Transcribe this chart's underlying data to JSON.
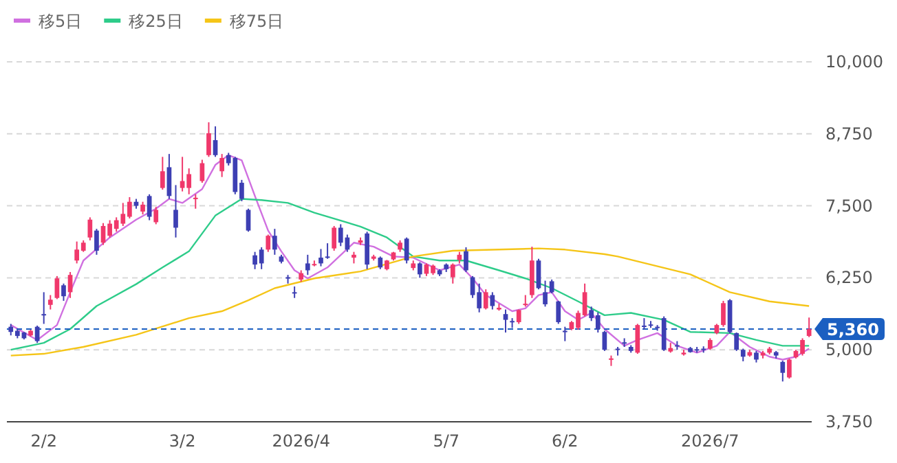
{
  "chart_data": {
    "type": "candlestick",
    "categories": [
      null,
      null,
      null,
      null,
      null,
      "2/2",
      null,
      null,
      null,
      null,
      null,
      null,
      null,
      null,
      null,
      null,
      null,
      null,
      null,
      null,
      null,
      null,
      null,
      null,
      null,
      null,
      "3/2",
      null,
      null,
      null,
      null,
      null,
      null,
      null,
      null,
      null,
      null,
      null,
      null,
      null,
      null,
      null,
      null,
      null,
      "2026/4",
      null,
      null,
      null,
      null,
      null,
      null,
      null,
      null,
      null,
      null,
      null,
      null,
      null,
      null,
      null,
      null,
      null,
      null,
      null,
      null,
      null,
      "5/7",
      null,
      null,
      null,
      null,
      null,
      null,
      null,
      null,
      null,
      null,
      null,
      null,
      null,
      null,
      null,
      null,
      null,
      "6/2",
      null,
      null,
      null,
      null,
      null,
      null,
      null,
      null,
      null,
      null,
      null,
      null,
      null,
      null,
      null,
      null,
      null,
      null,
      null,
      null,
      null,
      "2026/7",
      null,
      null,
      null,
      null,
      null,
      null,
      null,
      null,
      null,
      null,
      null,
      null,
      null,
      null,
      null
    ],
    "ohlc": [
      [
        5400,
        5450,
        5250,
        5310
      ],
      [
        5330,
        5350,
        5200,
        5240
      ],
      [
        5300,
        5310,
        5180,
        5200
      ],
      [
        5250,
        5350,
        5230,
        5330
      ],
      [
        5400,
        5420,
        5120,
        5150
      ],
      [
        5620,
        6000,
        5450,
        5600
      ],
      [
        5780,
        5950,
        5700,
        5870
      ],
      [
        5900,
        6280,
        5880,
        6240
      ],
      [
        6120,
        6150,
        5850,
        5930
      ],
      [
        6000,
        6350,
        5900,
        6300
      ],
      [
        6550,
        6880,
        6500,
        6740
      ],
      [
        6720,
        6900,
        6700,
        6860
      ],
      [
        6950,
        7300,
        6900,
        7260
      ],
      [
        7070,
        7100,
        6650,
        6720
      ],
      [
        6860,
        7200,
        6820,
        7150
      ],
      [
        6980,
        7250,
        6950,
        7190
      ],
      [
        7100,
        7300,
        7050,
        7250
      ],
      [
        7190,
        7550,
        7150,
        7360
      ],
      [
        7310,
        7650,
        7280,
        7570
      ],
      [
        7570,
        7620,
        7450,
        7500
      ],
      [
        7400,
        7570,
        7350,
        7520
      ],
      [
        7670,
        7700,
        7250,
        7310
      ],
      [
        7215,
        7480,
        7180,
        7430
      ],
      [
        7810,
        8350,
        7780,
        8100
      ],
      [
        8170,
        8400,
        7620,
        7670
      ],
      [
        7430,
        7860,
        6950,
        7120
      ],
      [
        7810,
        8350,
        7750,
        7930
      ],
      [
        7810,
        8150,
        7700,
        8050
      ],
      [
        7620,
        7700,
        7450,
        7640
      ],
      [
        7930,
        8300,
        7900,
        8240
      ],
      [
        8380,
        8950,
        8350,
        8760
      ],
      [
        8640,
        8880,
        8350,
        8380
      ],
      [
        8100,
        8400,
        8000,
        8330
      ],
      [
        8380,
        8420,
        8200,
        8240
      ],
      [
        8330,
        8350,
        7700,
        7740
      ],
      [
        7900,
        7950,
        7580,
        7620
      ],
      [
        7430,
        7450,
        7050,
        7070
      ],
      [
        6640,
        6700,
        6400,
        6480
      ],
      [
        6740,
        6780,
        6400,
        6500
      ],
      [
        6740,
        7000,
        6700,
        6980
      ],
      [
        6980,
        7100,
        6650,
        6740
      ],
      [
        6620,
        6650,
        6500,
        6530
      ],
      [
        6260,
        6300,
        6150,
        6240
      ],
      [
        6000,
        6100,
        5900,
        5980
      ],
      [
        6220,
        6380,
        6180,
        6330
      ],
      [
        6500,
        6650,
        6300,
        6380
      ],
      [
        6470,
        6550,
        6450,
        6490
      ],
      [
        6600,
        6750,
        6450,
        6500
      ],
      [
        6620,
        6850,
        6580,
        6600
      ],
      [
        6760,
        7150,
        6720,
        7120
      ],
      [
        7120,
        7180,
        6800,
        6860
      ],
      [
        6950,
        7000,
        6700,
        6740
      ],
      [
        6600,
        6700,
        6500,
        6650
      ],
      [
        6860,
        6950,
        6820,
        6900
      ],
      [
        7020,
        7050,
        6400,
        6480
      ],
      [
        6580,
        6650,
        6550,
        6620
      ],
      [
        6600,
        6620,
        6400,
        6430
      ],
      [
        6400,
        6560,
        6380,
        6550
      ],
      [
        6570,
        6700,
        6550,
        6690
      ],
      [
        6740,
        6900,
        6700,
        6860
      ],
      [
        6930,
        6950,
        6500,
        6550
      ],
      [
        6420,
        6550,
        6380,
        6500
      ],
      [
        6500,
        6520,
        6250,
        6310
      ],
      [
        6320,
        6500,
        6280,
        6480
      ],
      [
        6330,
        6480,
        6300,
        6460
      ],
      [
        6380,
        6400,
        6280,
        6310
      ],
      [
        6480,
        6500,
        6350,
        6400
      ],
      [
        6260,
        6500,
        6150,
        6480
      ],
      [
        6560,
        6700,
        6500,
        6650
      ],
      [
        6710,
        6780,
        6350,
        6380
      ],
      [
        6260,
        6280,
        5900,
        5950
      ],
      [
        6000,
        6150,
        5650,
        5720
      ],
      [
        5720,
        6050,
        5700,
        6000
      ],
      [
        5950,
        6000,
        5700,
        5760
      ],
      [
        5700,
        5800,
        5680,
        5730
      ],
      [
        5620,
        5700,
        5300,
        5520
      ],
      [
        5500,
        5550,
        5380,
        5480
      ],
      [
        5480,
        5700,
        5450,
        5690
      ],
      [
        5780,
        5950,
        5750,
        5800
      ],
      [
        5950,
        6790,
        5900,
        6550
      ],
      [
        6550,
        6580,
        6050,
        6070
      ],
      [
        6000,
        6200,
        5750,
        5790
      ],
      [
        6190,
        6220,
        5980,
        6000
      ],
      [
        5840,
        5850,
        5450,
        5480
      ],
      [
        5330,
        5400,
        5150,
        5310
      ],
      [
        5360,
        5500,
        5340,
        5480
      ],
      [
        5380,
        5680,
        5350,
        5640
      ],
      [
        5600,
        6150,
        5580,
        6000
      ],
      [
        5690,
        5750,
        5500,
        5550
      ],
      [
        5600,
        5650,
        5300,
        5360
      ],
      [
        5310,
        5330,
        4980,
        5000
      ],
      [
        4830,
        4900,
        4720,
        4850
      ],
      [
        5020,
        5050,
        4900,
        5000
      ],
      [
        5130,
        5200,
        5050,
        5110
      ],
      [
        5050,
        5080,
        4950,
        4980
      ],
      [
        4950,
        5450,
        4930,
        5430
      ],
      [
        5420,
        5550,
        5350,
        5400
      ],
      [
        5440,
        5500,
        5380,
        5430
      ],
      [
        5400,
        5430,
        5330,
        5380
      ],
      [
        5550,
        5580,
        4980,
        5000
      ],
      [
        4970,
        5120,
        4950,
        5030
      ],
      [
        5080,
        5150,
        5000,
        5070
      ],
      [
        4920,
        5000,
        4900,
        4950
      ],
      [
        5030,
        5050,
        4950,
        4960
      ],
      [
        5010,
        5050,
        4950,
        4990
      ],
      [
        5020,
        5060,
        4950,
        5000
      ],
      [
        5020,
        5200,
        5000,
        5170
      ],
      [
        5290,
        5450,
        5270,
        5430
      ],
      [
        5430,
        5850,
        5400,
        5810
      ],
      [
        5860,
        5880,
        5280,
        5310
      ],
      [
        5290,
        5300,
        4980,
        5000
      ],
      [
        5000,
        5020,
        4800,
        4880
      ],
      [
        4900,
        5000,
        4880,
        4960
      ],
      [
        4950,
        4980,
        4780,
        4830
      ],
      [
        4900,
        4980,
        4850,
        4950
      ],
      [
        4950,
        5050,
        4920,
        5020
      ],
      [
        4960,
        4980,
        4850,
        4900
      ],
      [
        4790,
        4810,
        4450,
        4600
      ],
      [
        4520,
        4850,
        4500,
        4830
      ],
      [
        4870,
        5000,
        4850,
        4980
      ],
      [
        4930,
        5200,
        4900,
        5170
      ],
      [
        5240,
        5560,
        5220,
        5360
      ]
    ],
    "colors": [
      "#3d3fb3",
      "#3d3fb3",
      "#3d3fb3",
      "#f0386b",
      "#3d3fb3",
      "#3d3fb3",
      "#f0386b",
      "#f0386b",
      "#3d3fb3",
      "#f0386b",
      "#f0386b",
      "#f0386b",
      "#f0386b",
      "#3d3fb3",
      "#f0386b",
      "#f0386b",
      "#f0386b",
      "#f0386b",
      "#f0386b",
      "#3d3fb3",
      "#f0386b",
      "#3d3fb3",
      "#f0386b",
      "#f0386b",
      "#3d3fb3",
      "#3d3fb3",
      "#f0386b",
      "#f0386b",
      "#f0386b",
      "#f0386b",
      "#f0386b",
      "#3d3fb3",
      "#f0386b",
      "#3d3fb3",
      "#3d3fb3",
      "#3d3fb3",
      "#3d3fb3",
      "#3d3fb3",
      "#3d3fb3",
      "#f0386b",
      "#3d3fb3",
      "#3d3fb3",
      "#3d3fb3",
      "#3d3fb3",
      "#f0386b",
      "#3d3fb3",
      "#f0386b",
      "#3d3fb3",
      "#3d3fb3",
      "#f0386b",
      "#3d3fb3",
      "#3d3fb3",
      "#f0386b",
      "#f0386b",
      "#3d3fb3",
      "#f0386b",
      "#3d3fb3",
      "#f0386b",
      "#f0386b",
      "#f0386b",
      "#3d3fb3",
      "#f0386b",
      "#3d3fb3",
      "#f0386b",
      "#f0386b",
      "#3d3fb3",
      "#3d3fb3",
      "#f0386b",
      "#f0386b",
      "#3d3fb3",
      "#3d3fb3",
      "#3d3fb3",
      "#f0386b",
      "#3d3fb3",
      "#f0386b",
      "#3d3fb3",
      "#3d3fb3",
      "#f0386b",
      "#f0386b",
      "#f0386b",
      "#3d3fb3",
      "#3d3fb3",
      "#3d3fb3",
      "#3d3fb3",
      "#3d3fb3",
      "#f0386b",
      "#f0386b",
      "#f0386b",
      "#3d3fb3",
      "#3d3fb3",
      "#3d3fb3",
      "#f0386b",
      "#3d3fb3",
      "#3d3fb3",
      "#3d3fb3",
      "#f0386b",
      "#3d3fb3",
      "#3d3fb3",
      "#3d3fb3",
      "#3d3fb3",
      "#f0386b",
      "#3d3fb3",
      "#f0386b",
      "#3d3fb3",
      "#3d3fb3",
      "#3d3fb3",
      "#f0386b",
      "#f0386b",
      "#f0386b",
      "#3d3fb3",
      "#3d3fb3",
      "#3d3fb3",
      "#f0386b",
      "#3d3fb3",
      "#f0386b",
      "#f0386b",
      "#3d3fb3",
      "#3d3fb3",
      "#f0386b",
      "#f0386b",
      "#f0386b",
      "#f0386b"
    ],
    "series": [
      {
        "name": "移5日",
        "type": "line",
        "color": "#d070e0",
        "values": [
          5430,
          null,
          null,
          null,
          5170,
          null,
          null,
          5430,
          null,
          6000,
          null,
          6550,
          null,
          null,
          null,
          6950,
          null,
          null,
          null,
          7260,
          null,
          null,
          7450,
          null,
          7620,
          null,
          7550,
          null,
          null,
          7790,
          null,
          8210,
          null,
          8380,
          null,
          8290,
          null,
          7670,
          null,
          7070,
          null,
          6710,
          null,
          6380,
          null,
          6240,
          null,
          null,
          6430,
          null,
          null,
          null,
          6860,
          null,
          null,
          6790,
          null,
          null,
          6620,
          null,
          null,
          6600,
          null,
          null,
          null,
          6380,
          null,
          null,
          6480,
          null,
          6240,
          null,
          5950,
          null,
          null,
          null,
          5670,
          null,
          5720,
          null,
          5950,
          null,
          6000,
          null,
          5670,
          null,
          5520,
          null,
          5640,
          null,
          5360,
          null,
          null,
          5070,
          null,
          5170,
          null,
          null,
          5290,
          null,
          null,
          5070,
          null,
          null,
          4950,
          null,
          null,
          5070,
          null,
          5310,
          null,
          null,
          5050,
          null,
          null,
          4880,
          null,
          4830,
          null,
          4880,
          null,
          5020
        ]
      },
      {
        "name": "移25日",
        "type": "line",
        "color": "#2ecc8a",
        "values": [
          5000,
          null,
          null,
          null,
          null,
          5120,
          null,
          null,
          null,
          5360,
          null,
          null,
          null,
          5760,
          null,
          null,
          null,
          null,
          null,
          6140,
          null,
          null,
          null,
          6430,
          null,
          null,
          null,
          6710,
          null,
          null,
          null,
          7330,
          null,
          null,
          null,
          7620,
          null,
          null,
          7600,
          null,
          null,
          null,
          7550,
          null,
          null,
          null,
          7380,
          null,
          null,
          null,
          null,
          null,
          null,
          7140,
          null,
          null,
          null,
          6950,
          null,
          null,
          null,
          6620,
          null,
          null,
          null,
          6550,
          null,
          null,
          null,
          6550,
          null,
          null,
          null,
          null,
          6380,
          null,
          null,
          null,
          6240,
          null,
          null,
          null,
          6070,
          null,
          null,
          null,
          5840,
          null,
          null,
          null,
          5600,
          null,
          null,
          null,
          5640,
          null,
          null,
          null,
          null,
          5520,
          null,
          null,
          null,
          5310,
          null,
          null,
          null,
          null,
          null,
          5290,
          null,
          null,
          null,
          5170,
          null,
          null,
          null,
          5070,
          null,
          null,
          null,
          5070
        ]
      },
      {
        "name": "移75日",
        "type": "line",
        "color": "#f5c518",
        "values": [
          4900,
          null,
          null,
          null,
          null,
          4930,
          null,
          null,
          null,
          null,
          null,
          5050,
          null,
          null,
          null,
          null,
          null,
          null,
          null,
          5260,
          null,
          null,
          null,
          null,
          null,
          null,
          null,
          5550,
          null,
          null,
          null,
          null,
          5670,
          null,
          null,
          null,
          5860,
          null,
          null,
          null,
          6070,
          null,
          null,
          null,
          null,
          null,
          6240,
          null,
          null,
          null,
          null,
          null,
          null,
          6360,
          null,
          null,
          null,
          null,
          null,
          null,
          null,
          6620,
          null,
          null,
          null,
          null,
          null,
          6720,
          null,
          null,
          null,
          null,
          null,
          null,
          6740,
          null,
          null,
          null,
          null,
          null,
          6760,
          null,
          null,
          null,
          6740,
          null,
          null,
          null,
          null,
          null,
          6660,
          null,
          6620,
          null,
          null,
          null,
          null,
          null,
          null,
          null,
          null,
          null,
          null,
          6310,
          null,
          null,
          null,
          null,
          null,
          6000,
          null,
          null,
          null,
          null,
          null,
          5840,
          null,
          null,
          null,
          null,
          null,
          5760
        ]
      }
    ],
    "ylim": [
      3750,
      10000
    ],
    "yticks": [
      {
        "value": 3750,
        "label": "3,750"
      },
      {
        "value": 5000,
        "label": "5,000"
      },
      {
        "value": 6250,
        "label": "6,250"
      },
      {
        "value": 7500,
        "label": "7,500"
      },
      {
        "value": 8750,
        "label": "8,750"
      },
      {
        "value": 10000,
        "label": "10,000"
      }
    ],
    "grid": "y",
    "legend": "top left",
    "ref_lines": [
      {
        "axis": "y",
        "value": 5360,
        "label": "5,360",
        "color": "#1b5fc1",
        "line_style": "dashed"
      }
    ]
  }
}
